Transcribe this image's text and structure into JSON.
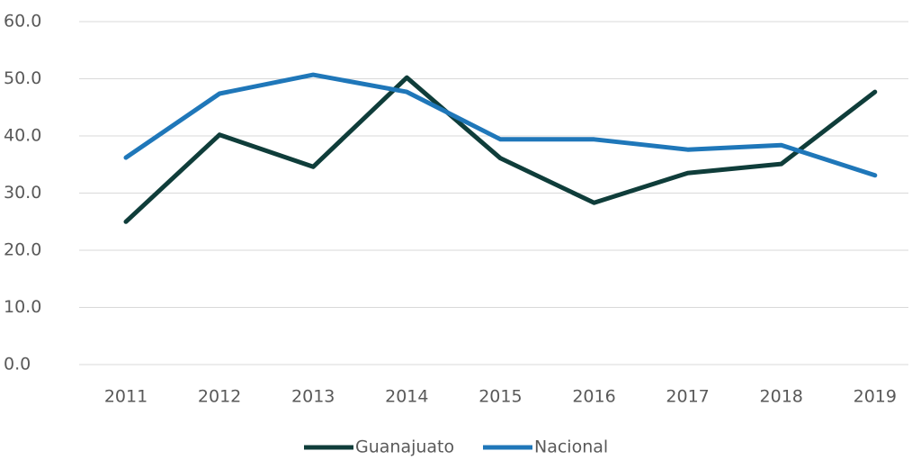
{
  "chart_data": {
    "type": "line",
    "categories": [
      "2011",
      "2012",
      "2013",
      "2014",
      "2015",
      "2016",
      "2017",
      "2018",
      "2019"
    ],
    "series": [
      {
        "name": "Guanajuato",
        "color": "#0f3d3a",
        "values": [
          25.0,
          40.2,
          34.6,
          50.2,
          36.1,
          28.3,
          33.5,
          35.1,
          47.7
        ]
      },
      {
        "name": "Nacional",
        "color": "#1f77b9",
        "values": [
          36.2,
          47.4,
          50.7,
          47.7,
          39.4,
          39.4,
          37.6,
          38.4,
          33.1
        ]
      }
    ],
    "ylim": [
      0,
      60
    ],
    "yticks": [
      {
        "value": 0,
        "label": "0.0"
      },
      {
        "value": 10,
        "label": "10.0"
      },
      {
        "value": 20,
        "label": "20.0"
      },
      {
        "value": 30,
        "label": "30.0"
      },
      {
        "value": 40,
        "label": "40.0"
      },
      {
        "value": 50,
        "label": "50.0"
      },
      {
        "value": 60,
        "label": "60.0"
      }
    ],
    "grid": true,
    "legend": "bottom"
  }
}
